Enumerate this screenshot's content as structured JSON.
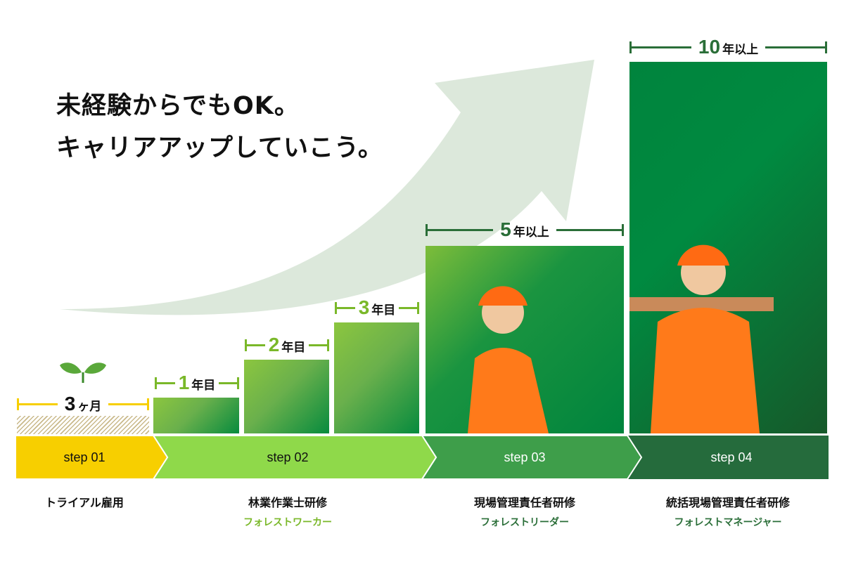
{
  "headline": {
    "line1": "未経験からでもOK。",
    "line2": "キャリアアップしていこう。"
  },
  "colors": {
    "arrow": "#dce8db",
    "step01": "#f7cf00",
    "step02": "#8fd94a",
    "step03": "#3e9e4a",
    "step04": "#256b3c",
    "accent_light": "#7ab829",
    "accent_dark": "#2a6e38"
  },
  "durations": [
    {
      "num": "3",
      "unit": "ヶ月"
    },
    {
      "num": "1",
      "unit": "年目"
    },
    {
      "num": "2",
      "unit": "年目"
    },
    {
      "num": "3",
      "unit": "年目"
    },
    {
      "num": "5",
      "unit": "年以上"
    },
    {
      "num": "10",
      "unit": "年以上"
    }
  ],
  "steps": [
    {
      "label": "step 01",
      "title": "トライアル雇用",
      "subtitle": ""
    },
    {
      "label": "step 02",
      "title": "林業作業士研修",
      "subtitle": "フォレストワーカー"
    },
    {
      "label": "step 03",
      "title": "現場管理責任者研修",
      "subtitle": "フォレストリーダー"
    },
    {
      "label": "step 04",
      "title": "統括現場管理責任者研修",
      "subtitle": "フォレストマネージャー"
    }
  ],
  "icons": {
    "sprout": "sprout-icon"
  }
}
